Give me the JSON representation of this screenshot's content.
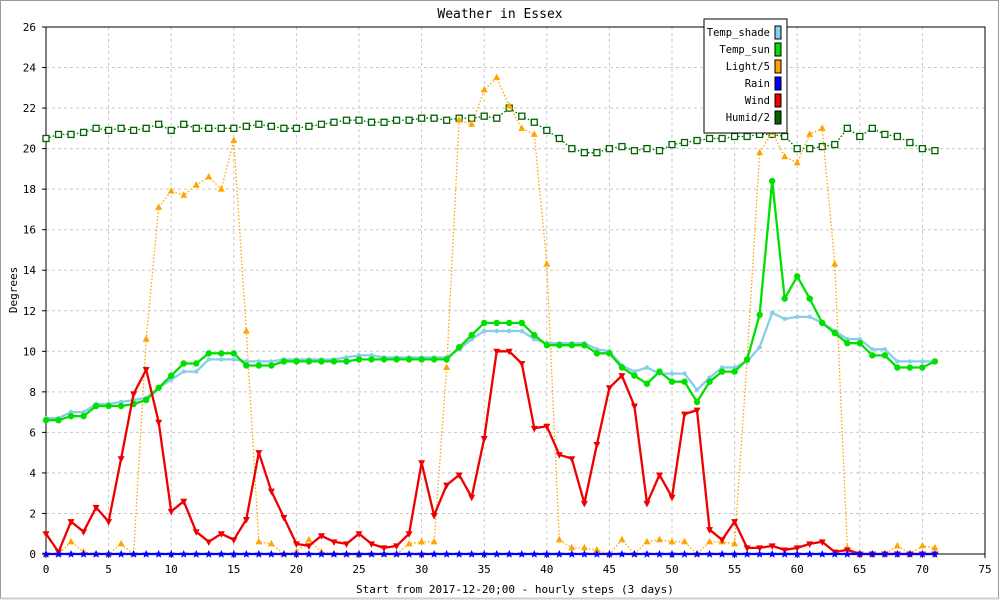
{
  "chart_data": {
    "type": "line",
    "title": "Weather in Essex",
    "xlabel": "Start from 2017-12-20;00 - hourly steps (3 days)",
    "ylabel": "Degrees",
    "xlim": [
      0,
      75
    ],
    "ylim": [
      0,
      26
    ],
    "x_ticks": [
      0,
      5,
      10,
      15,
      20,
      25,
      30,
      35,
      40,
      45,
      50,
      55,
      60,
      65,
      70,
      75
    ],
    "y_ticks": [
      0,
      2,
      4,
      6,
      8,
      10,
      12,
      14,
      16,
      18,
      20,
      22,
      24,
      26
    ],
    "grid": true,
    "legend_position": "top-right",
    "series": [
      {
        "name": "Temp_shade",
        "color": "#87ceeb",
        "style": "solid",
        "marker": "dot",
        "values": [
          6.7,
          6.7,
          7.0,
          7.0,
          7.4,
          7.4,
          7.5,
          7.6,
          7.7,
          8.2,
          8.6,
          9.0,
          9.0,
          9.6,
          9.6,
          9.6,
          9.5,
          9.5,
          9.5,
          9.6,
          9.6,
          9.6,
          9.6,
          9.6,
          9.7,
          9.8,
          9.8,
          9.7,
          9.7,
          9.7,
          9.7,
          9.7,
          9.7,
          10.1,
          10.6,
          11.0,
          11.0,
          11.0,
          11.0,
          10.6,
          10.4,
          10.4,
          10.4,
          10.4,
          10.1,
          10.0,
          9.3,
          9.0,
          9.2,
          8.9,
          8.9,
          8.9,
          8.1,
          8.7,
          9.2,
          9.2,
          9.5,
          10.2,
          11.9,
          11.6,
          11.7,
          11.7,
          11.4,
          11.0,
          10.6,
          10.6,
          10.1,
          10.1,
          9.5,
          9.5,
          9.5,
          9.5
        ]
      },
      {
        "name": "Temp_sun",
        "color": "#00e000",
        "style": "solid",
        "marker": "circle",
        "values": [
          6.6,
          6.6,
          6.8,
          6.8,
          7.3,
          7.3,
          7.3,
          7.4,
          7.6,
          8.2,
          8.8,
          9.4,
          9.4,
          9.9,
          9.9,
          9.9,
          9.3,
          9.3,
          9.3,
          9.5,
          9.5,
          9.5,
          9.5,
          9.5,
          9.5,
          9.6,
          9.6,
          9.6,
          9.6,
          9.6,
          9.6,
          9.6,
          9.6,
          10.2,
          10.8,
          11.4,
          11.4,
          11.4,
          11.4,
          10.8,
          10.3,
          10.3,
          10.3,
          10.3,
          9.9,
          9.9,
          9.2,
          8.8,
          8.4,
          9.0,
          8.5,
          8.5,
          7.5,
          8.5,
          9.0,
          9.0,
          9.6,
          11.8,
          18.4,
          12.6,
          13.7,
          12.6,
          11.4,
          10.9,
          10.4,
          10.4,
          9.8,
          9.8,
          9.2,
          9.2,
          9.2,
          9.5
        ]
      },
      {
        "name": "Light/5",
        "color": "#ffa500",
        "style": "dotted",
        "marker": "triangle-up",
        "values": [
          0.0,
          0.0,
          0.6,
          0.1,
          0.0,
          0.0,
          0.5,
          0.0,
          10.6,
          17.1,
          17.9,
          17.7,
          18.2,
          18.6,
          18.0,
          20.4,
          11.0,
          0.6,
          0.5,
          0.0,
          0.1,
          0.7,
          0.1,
          0.0,
          0.0,
          0.0,
          0.0,
          0.0,
          0.0,
          0.5,
          0.6,
          0.6,
          9.2,
          21.4,
          21.2,
          22.9,
          23.5,
          22.1,
          21.0,
          20.7,
          14.3,
          0.7,
          0.3,
          0.3,
          0.2,
          0.0,
          0.7,
          0.0,
          0.6,
          0.7,
          0.6,
          0.6,
          0.0,
          0.6,
          0.6,
          0.5,
          9.6,
          19.8,
          20.8,
          19.6,
          19.3,
          20.7,
          21.0,
          14.3,
          0.3,
          0.0,
          0.0,
          0.0,
          0.4,
          0.0,
          0.4,
          0.3
        ]
      },
      {
        "name": "Rain",
        "color": "#0000ff",
        "style": "solid",
        "marker": "star",
        "values": [
          0,
          0,
          0,
          0,
          0,
          0,
          0,
          0,
          0,
          0,
          0,
          0,
          0,
          0,
          0,
          0,
          0,
          0,
          0,
          0,
          0,
          0,
          0,
          0,
          0,
          0,
          0,
          0,
          0,
          0,
          0,
          0,
          0,
          0,
          0,
          0,
          0,
          0,
          0,
          0,
          0,
          0,
          0,
          0,
          0,
          0,
          0,
          0,
          0,
          0,
          0,
          0,
          0,
          0,
          0,
          0,
          0,
          0,
          0,
          0,
          0,
          0,
          0,
          0,
          0,
          0,
          0,
          0,
          0,
          0,
          0,
          0
        ]
      },
      {
        "name": "Wind",
        "color": "#ee0000",
        "style": "solid",
        "marker": "triangle-down",
        "values": [
          1.0,
          0.1,
          1.6,
          1.1,
          2.3,
          1.6,
          4.7,
          7.9,
          9.1,
          6.5,
          2.1,
          2.6,
          1.1,
          0.6,
          1.0,
          0.7,
          1.7,
          5.0,
          3.1,
          1.8,
          0.5,
          0.4,
          0.9,
          0.6,
          0.5,
          1.0,
          0.5,
          0.3,
          0.4,
          1.0,
          4.5,
          1.9,
          3.4,
          3.9,
          2.8,
          5.7,
          10.0,
          10.0,
          9.4,
          6.2,
          6.3,
          4.9,
          4.7,
          2.5,
          5.4,
          8.2,
          8.8,
          7.3,
          2.5,
          3.9,
          2.8,
          6.9,
          7.1,
          1.2,
          0.7,
          1.6,
          0.3,
          0.3,
          0.4,
          0.2,
          0.3,
          0.5,
          0.6,
          0.1,
          0.2,
          0.0,
          0.0,
          0.0,
          0.0,
          0.0,
          0.0,
          0.0
        ]
      },
      {
        "name": "Humid/2",
        "color": "#006400",
        "style": "dotted",
        "marker": "square",
        "values": [
          20.5,
          20.7,
          20.7,
          20.8,
          21.0,
          20.9,
          21.0,
          20.9,
          21.0,
          21.2,
          20.9,
          21.2,
          21.0,
          21.0,
          21.0,
          21.0,
          21.1,
          21.2,
          21.1,
          21.0,
          21.0,
          21.1,
          21.2,
          21.3,
          21.4,
          21.4,
          21.3,
          21.3,
          21.4,
          21.4,
          21.5,
          21.5,
          21.4,
          21.5,
          21.5,
          21.6,
          21.5,
          22.0,
          21.6,
          21.3,
          20.9,
          20.5,
          20.0,
          19.8,
          19.8,
          20.0,
          20.1,
          19.9,
          20.0,
          19.9,
          20.2,
          20.3,
          20.4,
          20.5,
          20.5,
          20.6,
          20.6,
          20.7,
          20.7,
          20.6,
          20.0,
          20.0,
          20.1,
          20.2,
          21.0,
          20.6,
          21.0,
          20.7,
          20.6,
          20.3,
          20.0,
          19.9
        ]
      }
    ]
  }
}
